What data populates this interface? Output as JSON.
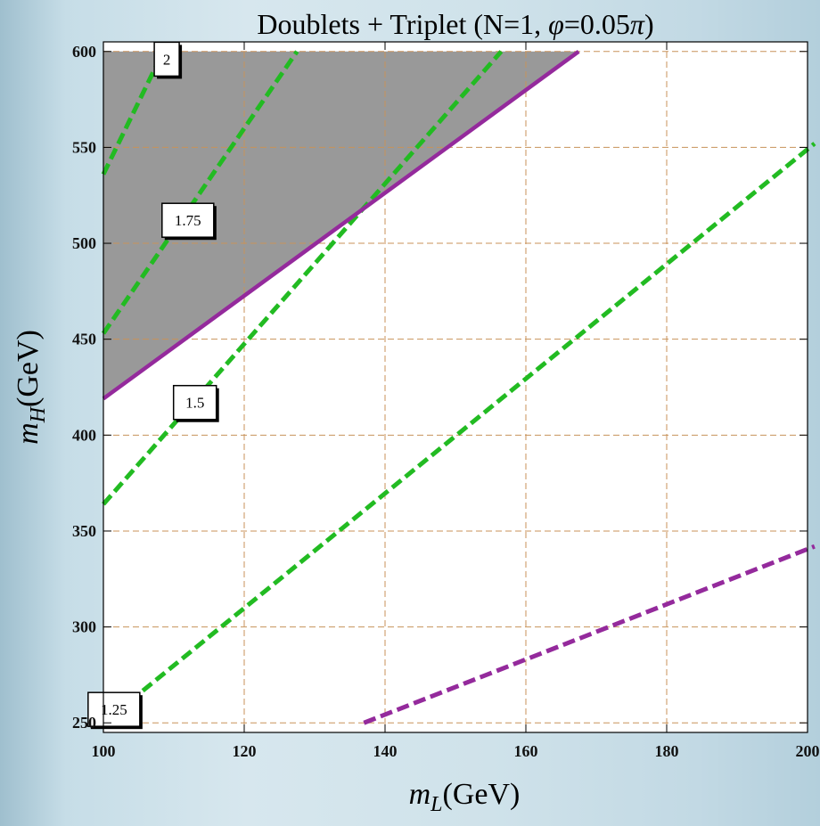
{
  "colors": {
    "page_bg": "#cfe2ea",
    "plot_bg": "#ffffff",
    "excluded_region": "#999999",
    "grid": "#c8925a",
    "green_contours": "#22bb22",
    "purple": "#942a9c",
    "frame": "#000000"
  },
  "chart_data": {
    "type": "contour",
    "title_parts": [
      "Doublets + Triplet (N=1, ",
      "φ",
      "=0.05",
      "π",
      ")"
    ],
    "xlabel": {
      "main": "m",
      "sub": "L",
      "unit": "(GeV)"
    },
    "ylabel": {
      "main": "m",
      "sub": "H",
      "unit": "(GeV)"
    },
    "xlim": [
      100,
      200
    ],
    "ylim": [
      245,
      605
    ],
    "xticks": [
      100,
      120,
      140,
      160,
      180,
      200
    ],
    "xtick_labels": [
      "100",
      "120",
      "140",
      "160",
      "180",
      "200"
    ],
    "yticks": [
      250,
      300,
      350,
      400,
      450,
      500,
      550,
      600
    ],
    "ytick_labels": [
      "250",
      "300",
      "350",
      "400",
      "450",
      "500",
      "550",
      "600"
    ],
    "grid": true,
    "shaded_region": {
      "description": "excluded",
      "points": [
        [
          100,
          600
        ],
        [
          167.5,
          600
        ],
        [
          100,
          419
        ]
      ]
    },
    "contours": [
      {
        "label": "2",
        "points": [
          [
            100,
            536
          ],
          [
            108.5,
            600
          ]
        ],
        "label_at": [
          109,
          596
        ]
      },
      {
        "label": "1.75",
        "points": [
          [
            100,
            453
          ],
          [
            127.5,
            600
          ]
        ],
        "label_at": [
          112,
          512
        ]
      },
      {
        "label": "1.5",
        "points": [
          [
            100,
            364
          ],
          [
            156.5,
            600
          ]
        ],
        "label_at": [
          113,
          417
        ]
      },
      {
        "label": "1.25",
        "points": [
          [
            100,
            250
          ],
          [
            201,
            552
          ]
        ],
        "label_at": [
          101.5,
          257
        ]
      }
    ],
    "boundary_solid": {
      "points": [
        [
          100,
          419
        ],
        [
          167.5,
          600
        ]
      ]
    },
    "boundary_dashed": {
      "points": [
        [
          137,
          250
        ],
        [
          201,
          342
        ]
      ]
    }
  }
}
